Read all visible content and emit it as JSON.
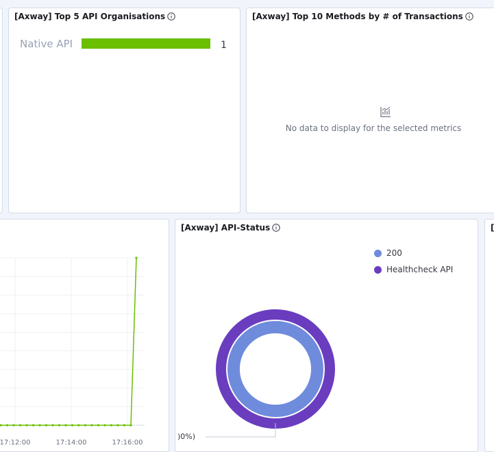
{
  "panels": {
    "orgs": {
      "title": "[Axway] Top 5 API Organisations",
      "bar_label": "Native API",
      "bar_value": "1",
      "bar_fraction": 1.0,
      "bar_color": "#6abf00"
    },
    "methods": {
      "title": "[Axway] Top 10 Methods by # of Transactions",
      "empty_message": "No data to display for the selected metrics",
      "empty_icon": "chart-empty-icon"
    },
    "status": {
      "title": "[Axway] API-Status",
      "legend": [
        {
          "label": "200",
          "color": "#6f8bdc"
        },
        {
          "label": "Healthcheck API",
          "color": "#6a3dbf"
        }
      ],
      "partial_label": ")0%)"
    },
    "right_edge": {
      "title": "[."
    },
    "timeline": {
      "line_color": "#6abf00",
      "x_ticks": [
        "17:12:00",
        "17:14:00",
        "17:16:00"
      ]
    }
  },
  "icons": {
    "info": "info-icon"
  }
}
